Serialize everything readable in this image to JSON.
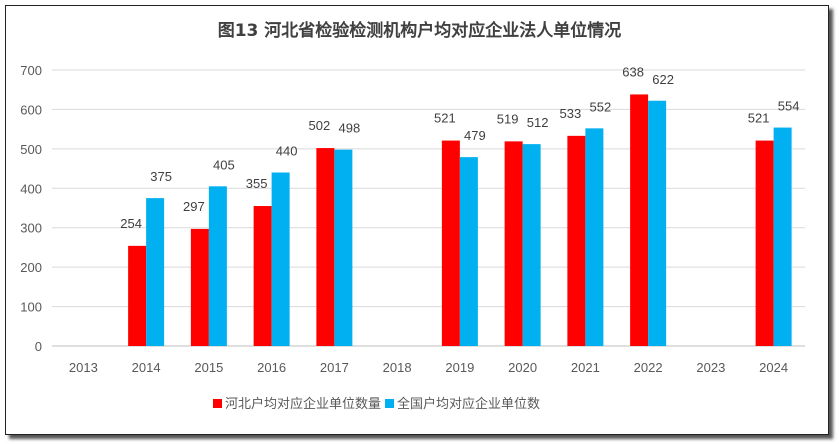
{
  "chart_data": {
    "type": "bar",
    "title": "图13 河北省检验检测机构户均对应企业法人单位情况",
    "categories": [
      "2013",
      "2014",
      "2015",
      "2016",
      "2017",
      "2018",
      "2019",
      "2020",
      "2021",
      "2022",
      "2023",
      "2024"
    ],
    "series": [
      {
        "name": "河北户均对应企业单位数量",
        "color": "#ff0000",
        "values": [
          null,
          254,
          297,
          355,
          502,
          null,
          521,
          519,
          533,
          638,
          null,
          521
        ]
      },
      {
        "name": "全国户均对应企业单位数",
        "color": "#00b0f0",
        "values": [
          null,
          375,
          405,
          440,
          498,
          null,
          479,
          512,
          552,
          622,
          null,
          554
        ]
      }
    ],
    "ylim": [
      0,
      700
    ],
    "yticks": [
      0,
      100,
      200,
      300,
      400,
      500,
      600,
      700
    ],
    "grid": true,
    "legend": "bottom"
  }
}
